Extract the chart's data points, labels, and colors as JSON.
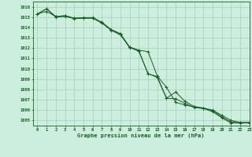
{
  "title": "Graphe pression niveau de la mer (hPa)",
  "background_color": "#cceedd",
  "grid_color": "#aaccbb",
  "line_color": "#1a5c2a",
  "marker_color": "#1a5c2a",
  "xlim": [
    -0.5,
    23
  ],
  "ylim": [
    1004.5,
    1016.5
  ],
  "yticks": [
    1005,
    1006,
    1007,
    1008,
    1009,
    1010,
    1011,
    1012,
    1013,
    1014,
    1015,
    1016
  ],
  "xticks": [
    0,
    1,
    2,
    3,
    4,
    5,
    6,
    7,
    8,
    9,
    10,
    11,
    12,
    13,
    14,
    15,
    16,
    17,
    18,
    19,
    20,
    21,
    22,
    23
  ],
  "series1": [
    1015.3,
    1015.8,
    1015.0,
    1015.1,
    1014.85,
    1014.9,
    1014.9,
    1014.45,
    1013.75,
    1013.35,
    1012.05,
    1011.75,
    1009.5,
    1009.25,
    1007.15,
    1007.1,
    1006.65,
    1006.25,
    1006.15,
    1005.85,
    1005.25,
    1004.75,
    1004.75,
    1004.75
  ],
  "series2": [
    1015.3,
    1015.8,
    1015.05,
    1015.15,
    1014.9,
    1014.95,
    1014.95,
    1014.5,
    1013.8,
    1013.4,
    1012.1,
    1011.8,
    1011.65,
    1009.3,
    1008.2,
    1006.75,
    1006.5,
    1006.3,
    1006.2,
    1006.0,
    1005.5,
    1005.0,
    1004.8,
    1004.8
  ],
  "series3": [
    1015.3,
    1015.55,
    1015.05,
    1015.05,
    1014.88,
    1014.9,
    1014.9,
    1014.42,
    1013.72,
    1013.28,
    1012.08,
    1011.7,
    1009.55,
    1009.15,
    1007.15,
    1007.75,
    1006.85,
    1006.35,
    1006.2,
    1005.95,
    1005.35,
    1004.85,
    1004.8,
    1004.8
  ],
  "x": [
    0,
    1,
    2,
    3,
    4,
    5,
    6,
    7,
    8,
    9,
    10,
    11,
    12,
    13,
    14,
    15,
    16,
    17,
    18,
    19,
    20,
    21,
    22,
    23
  ]
}
